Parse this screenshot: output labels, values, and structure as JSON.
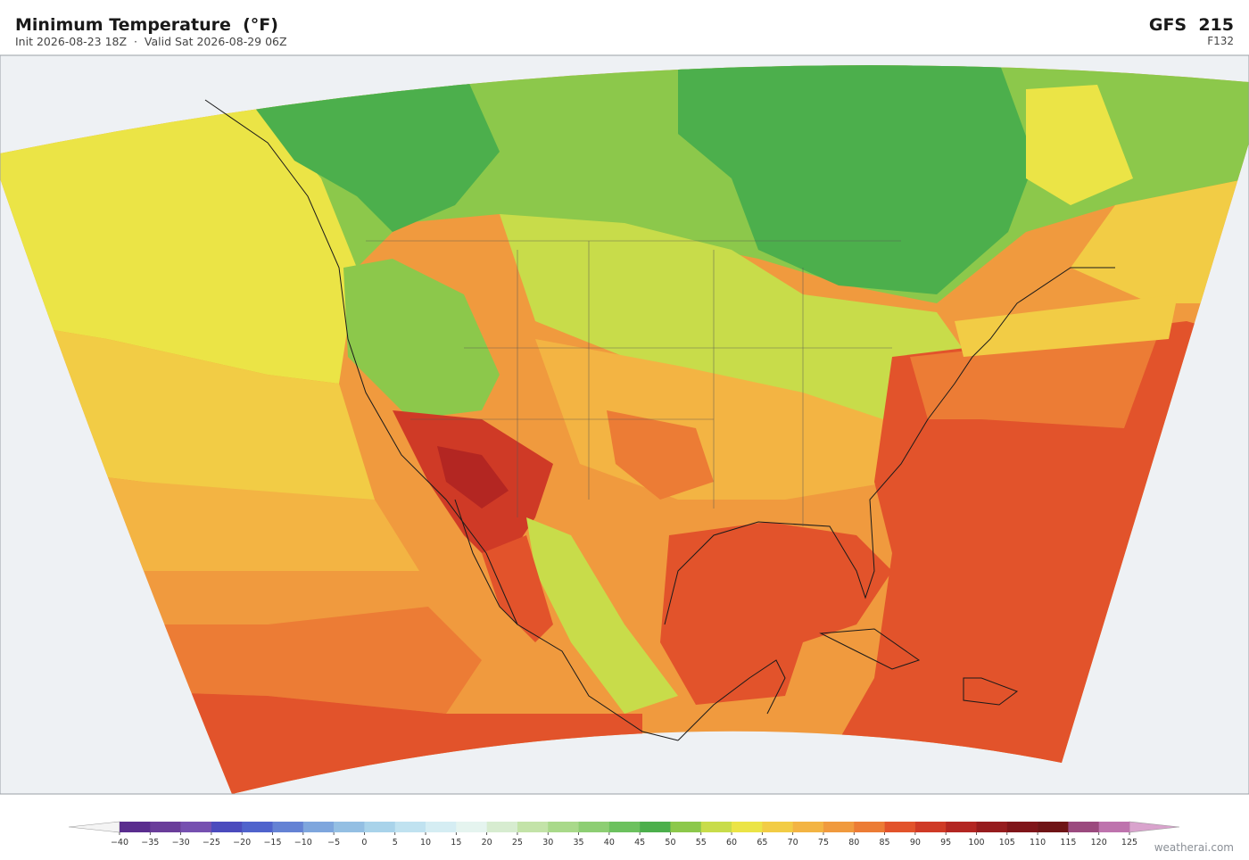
{
  "header": {
    "title": "Minimum Temperature  (°F)",
    "subtitle": "Init 2026-08-23 18Z  ·  Valid Sat 2026-08-29 06Z",
    "model": "GFS  215",
    "forecast_hour": "F132"
  },
  "colorbar": {
    "ticks": [
      {
        "value": -40,
        "label": "−40"
      },
      {
        "value": -35,
        "label": "−35"
      },
      {
        "value": -30,
        "label": "−30"
      },
      {
        "value": -25,
        "label": "−25"
      },
      {
        "value": -20,
        "label": "−20"
      },
      {
        "value": -15,
        "label": "−15"
      },
      {
        "value": -10,
        "label": "−10"
      },
      {
        "value": -5,
        "label": "−5"
      },
      0,
      5,
      10,
      15,
      20,
      25,
      30,
      35,
      40,
      45,
      50,
      55,
      60,
      65,
      70,
      75,
      80,
      85,
      90,
      95,
      100,
      105,
      110,
      115,
      120,
      125
    ],
    "colors": [
      "#5a2d8e",
      "#6a3d9a",
      "#7650b0",
      "#4b4bbd",
      "#4f63cc",
      "#6482d4",
      "#7ea6dd",
      "#94bfe3",
      "#a9d3ea",
      "#c0e2f0",
      "#d5edf3",
      "#e5f4ef",
      "#d7ecd0",
      "#c3e3a8",
      "#a9d98a",
      "#8dce73",
      "#6cc15e",
      "#4caf4c",
      "#8cc84b",
      "#c8dc4a",
      "#ebe446",
      "#f2cc45",
      "#f3b443",
      "#f09a3e",
      "#ec7c35",
      "#e2532b",
      "#cf3a26",
      "#b32622",
      "#961c1e",
      "#7f1519",
      "#6f1416",
      "#9b4a7e",
      "#be73ad"
    ],
    "under_color": "#f4f4f4",
    "over_color": "#d9a3cd"
  },
  "watermark": "weatherai.com"
}
